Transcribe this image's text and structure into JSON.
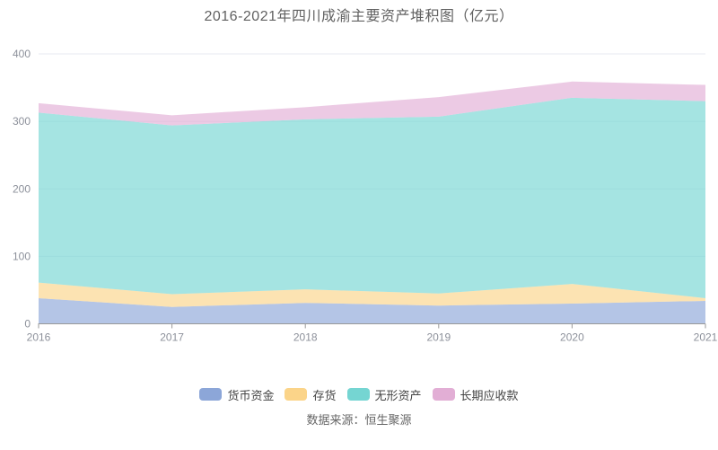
{
  "title": "2016-2021年四川成渝主要资产堆积图（亿元）",
  "source": {
    "text": "数据来源：恒生聚源"
  },
  "chart_data": {
    "type": "area",
    "stacked": true,
    "title": "2016-2021年四川成渝主要资产堆积图（亿元）",
    "categories": [
      "2016",
      "2017",
      "2018",
      "2019",
      "2020",
      "2021"
    ],
    "series": [
      {
        "id": "monetary-funds",
        "name": "货币资金",
        "color": "#8ca6d8",
        "values": [
          38,
          25,
          31,
          27,
          30,
          34
        ]
      },
      {
        "id": "inventory",
        "name": "存货",
        "color": "#fbd489",
        "values": [
          23,
          19,
          20,
          18,
          29,
          4
        ]
      },
      {
        "id": "intangible-assets",
        "name": "无形资产",
        "color": "#75d5d2",
        "values": [
          252,
          250,
          252,
          262,
          276,
          292
        ]
      },
      {
        "id": "long-term-receivables",
        "name": "长期应收款",
        "color": "#e2aed5",
        "values": [
          14,
          15,
          18,
          29,
          24,
          24
        ]
      }
    ],
    "xlabel": "",
    "ylabel": "",
    "ylim": [
      0,
      400
    ],
    "yticks": [
      0,
      100,
      200,
      300,
      400
    ],
    "grid": true,
    "legend_position": "bottom",
    "area_opacity": 0.65,
    "grid_color": "#e7eaf1",
    "axis_color": "#999999",
    "label_color": "#8c909a"
  }
}
